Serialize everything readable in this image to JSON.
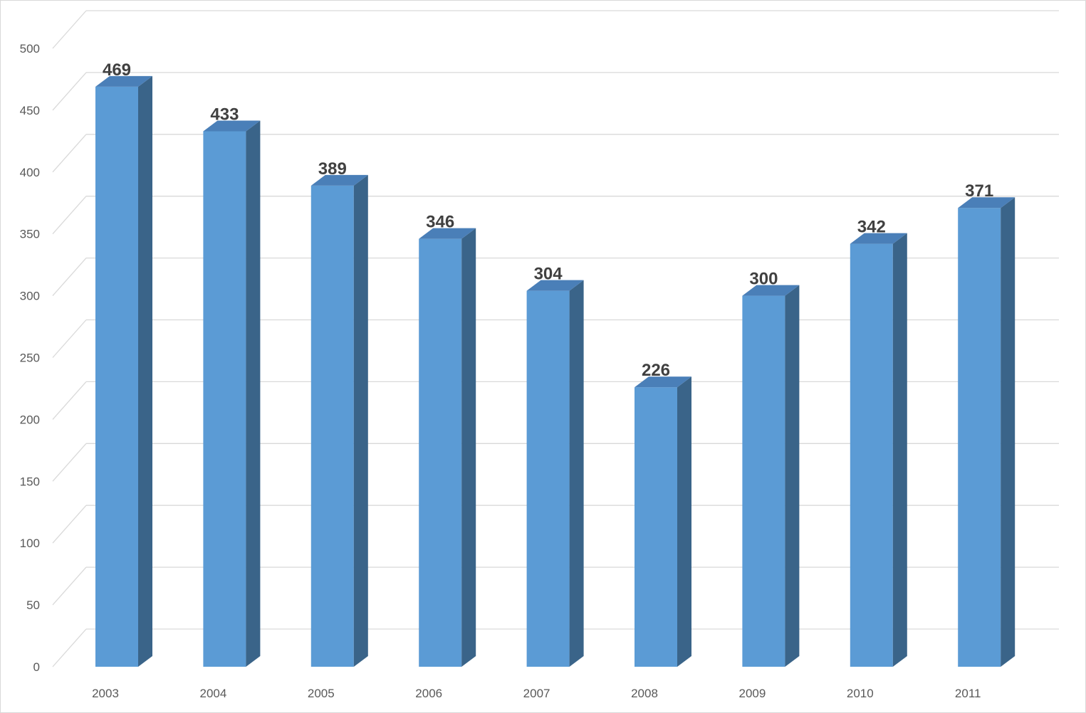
{
  "chart_data": {
    "type": "bar",
    "style": "3d-column",
    "categories": [
      "2003",
      "2004",
      "2005",
      "2006",
      "2007",
      "2008",
      "2009",
      "2010",
      "2011"
    ],
    "values": [
      469,
      433,
      389,
      346,
      304,
      226,
      300,
      342,
      371
    ],
    "title": "",
    "xlabel": "",
    "ylabel": "",
    "ylim": [
      0,
      500
    ],
    "yticks": [
      0,
      50,
      100,
      150,
      200,
      250,
      300,
      350,
      400,
      450,
      500
    ],
    "grid": true,
    "legend": "none",
    "data_labels": true,
    "colors": {
      "bar_front": "#5b9bd5",
      "bar_side": "#3a6489",
      "bar_top": "#4a7fb8",
      "grid": "#d9d9d9"
    }
  }
}
